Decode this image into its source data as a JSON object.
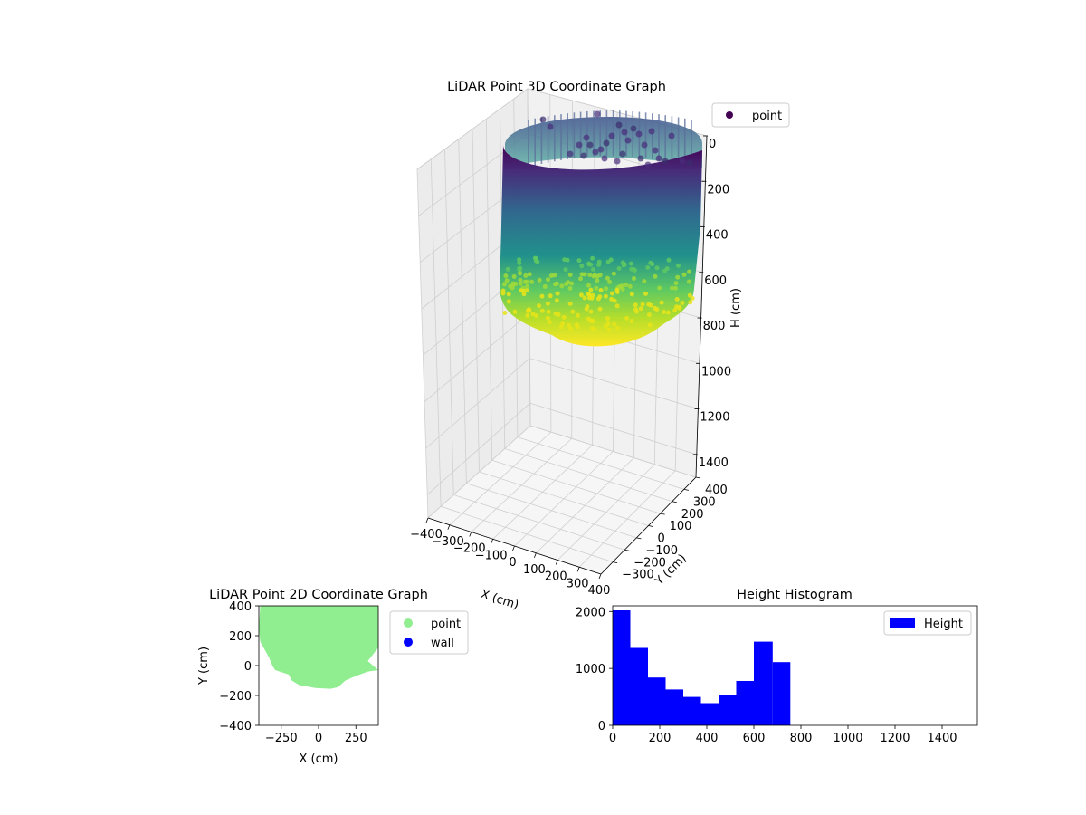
{
  "figure": {
    "colors": {
      "background": "#ffffff",
      "pane": "#f2f2f2",
      "grid": "#cfcfcf",
      "viridis_top": "#440154",
      "viridis_mid": "#21918c",
      "viridis_bottom": "#fde725",
      "scatter2d": "#90ee90",
      "wall": "#0000ff",
      "hist": "#0000ff"
    }
  },
  "chart_data": [
    {
      "type": "scatter",
      "projection": "3d",
      "title": "LiDAR Point 3D Coordinate Graph",
      "xlabel": "X (cm)",
      "ylabel": "Y (cm)",
      "zlabel": "H (cm)",
      "xlim": [
        -400,
        400
      ],
      "ylim": [
        -400,
        400
      ],
      "zlim": [
        0,
        1500
      ],
      "z_inverted": true,
      "x_ticks": [
        "−400",
        "−300",
        "−200",
        "−100",
        "0",
        "100",
        "200",
        "300",
        "400"
      ],
      "y_ticks": [
        "−300",
        "−200",
        "−100",
        "0",
        "100",
        "200",
        "300",
        "400"
      ],
      "z_ticks": [
        "0",
        "200",
        "400",
        "600",
        "800",
        "1000",
        "1200",
        "1400"
      ],
      "legend": {
        "position": "upper right, outside",
        "entries": [
          "point"
        ]
      },
      "colormap": "viridis",
      "color_by": "H",
      "cloud": {
        "shape": "cylinder",
        "radius": 400,
        "h_top": 0,
        "h_bottom_min": 620,
        "h_bottom_max": 900
      },
      "grid": true
    },
    {
      "type": "scatter",
      "title": "LiDAR Point 2D Coordinate Graph",
      "xlabel": "X (cm)",
      "ylabel": "Y (cm)",
      "xlim": [
        -400,
        400
      ],
      "ylim": [
        -400,
        400
      ],
      "x_ticks": [
        "−250",
        "0",
        "250"
      ],
      "y_ticks": [
        "−400",
        "−200",
        "0",
        "200",
        "400"
      ],
      "legend": {
        "position": "upper right, outside",
        "entries": [
          "point",
          "wall"
        ]
      },
      "region_outline": [
        [
          -390,
          400
        ],
        [
          -400,
          250
        ],
        [
          -390,
          160
        ],
        [
          -330,
          50
        ],
        [
          -310,
          0
        ],
        [
          -290,
          -30
        ],
        [
          -200,
          -60
        ],
        [
          -180,
          -100
        ],
        [
          -130,
          -130
        ],
        [
          -20,
          -150
        ],
        [
          80,
          -155
        ],
        [
          130,
          -145
        ],
        [
          180,
          -100
        ],
        [
          250,
          -70
        ],
        [
          330,
          -40
        ],
        [
          400,
          -30
        ],
        [
          330,
          30
        ],
        [
          400,
          120
        ],
        [
          400,
          400
        ]
      ],
      "grid": false
    },
    {
      "type": "bar",
      "title": "Height Histogram",
      "xlabel": "",
      "ylabel": "",
      "xlim": [
        0,
        1550
      ],
      "ylim": [
        0,
        2100
      ],
      "x_ticks": [
        "0",
        "200",
        "400",
        "600",
        "800",
        "1000",
        "1200",
        "1400"
      ],
      "y_ticks": [
        "0",
        "1000",
        "2000"
      ],
      "legend": {
        "position": "upper right",
        "entries": [
          "Height"
        ]
      },
      "bins": [
        {
          "x0": 0,
          "x1": 75,
          "value": 2020
        },
        {
          "x0": 75,
          "x1": 150,
          "value": 1360
        },
        {
          "x0": 150,
          "x1": 225,
          "value": 840
        },
        {
          "x0": 225,
          "x1": 300,
          "value": 630
        },
        {
          "x0": 300,
          "x1": 375,
          "value": 500
        },
        {
          "x0": 375,
          "x1": 450,
          "value": 390
        },
        {
          "x0": 450,
          "x1": 525,
          "value": 530
        },
        {
          "x0": 525,
          "x1": 600,
          "value": 780
        },
        {
          "x0": 600,
          "x1": 680,
          "value": 1470
        },
        {
          "x0": 680,
          "x1": 755,
          "value": 1110
        }
      ],
      "grid": false
    }
  ]
}
